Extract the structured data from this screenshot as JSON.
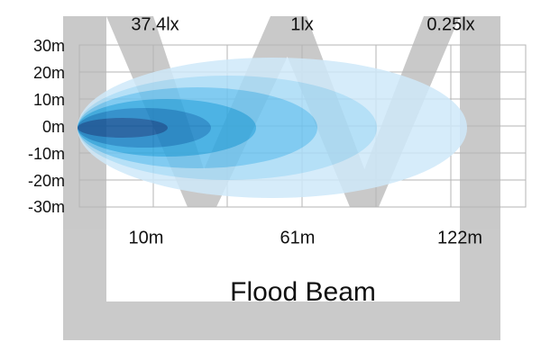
{
  "illuminance_labels": [
    "37.4lx",
    "1lx",
    "0.25lx"
  ],
  "y_axis_labels": [
    "30m",
    "20m",
    "10m",
    "0m",
    "-10m",
    "-20m",
    "-30m"
  ],
  "distance_labels": [
    "10m",
    "61m",
    "122m"
  ],
  "title": "Flood Beam"
}
